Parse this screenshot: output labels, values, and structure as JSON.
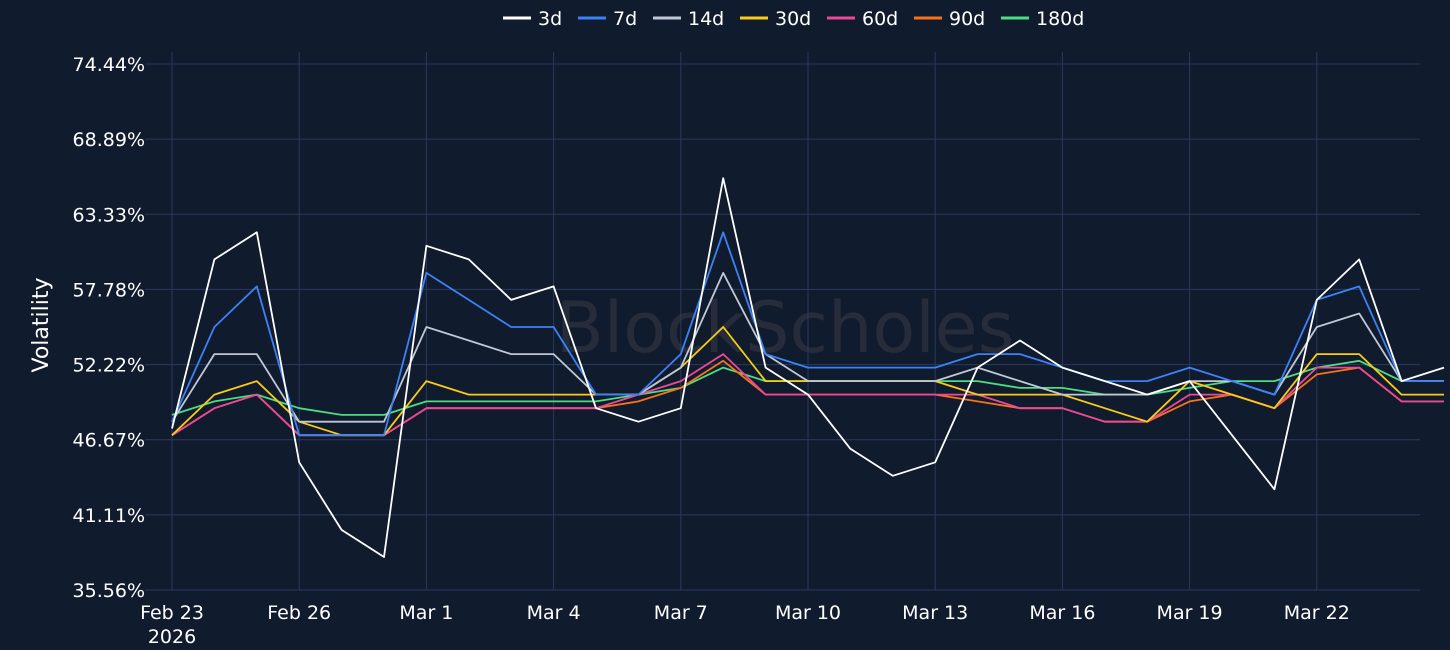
{
  "chart_data": {
    "type": "line",
    "title": "",
    "xlabel": "",
    "ylabel": "Volatility",
    "watermark": "BlockScholes",
    "legend_position": "top-center",
    "grid": true,
    "ylim": [
      35.56,
      74.44
    ],
    "xlim": [
      "2026-02-23",
      "2026-03-25"
    ],
    "y_ticks": [
      "35.56%",
      "41.11%",
      "46.67%",
      "52.22%",
      "57.78%",
      "63.33%",
      "68.89%",
      "74.44%"
    ],
    "y_tick_values": [
      35.56,
      41.11,
      46.67,
      52.22,
      57.78,
      63.33,
      68.89,
      74.44
    ],
    "x_ticks": [
      {
        "date": "2026-02-23",
        "label": "Feb 23",
        "sublabel": "2026"
      },
      {
        "date": "2026-02-26",
        "label": "Feb 26",
        "sublabel": ""
      },
      {
        "date": "2026-03-01",
        "label": "Mar 1",
        "sublabel": ""
      },
      {
        "date": "2026-03-04",
        "label": "Mar 4",
        "sublabel": ""
      },
      {
        "date": "2026-03-07",
        "label": "Mar 7",
        "sublabel": ""
      },
      {
        "date": "2026-03-10",
        "label": "Mar 10",
        "sublabel": ""
      },
      {
        "date": "2026-03-13",
        "label": "Mar 13",
        "sublabel": ""
      },
      {
        "date": "2026-03-16",
        "label": "Mar 16",
        "sublabel": ""
      },
      {
        "date": "2026-03-19",
        "label": "Mar 19",
        "sublabel": ""
      },
      {
        "date": "2026-03-22",
        "label": "Mar 22",
        "sublabel": ""
      }
    ],
    "x": [
      "2026-02-23",
      "2026-02-24",
      "2026-02-25",
      "2026-02-26",
      "2026-02-27",
      "2026-02-28",
      "2026-03-01",
      "2026-03-02",
      "2026-03-03",
      "2026-03-04",
      "2026-03-05",
      "2026-03-06",
      "2026-03-07",
      "2026-03-08",
      "2026-03-09",
      "2026-03-10",
      "2026-03-11",
      "2026-03-12",
      "2026-03-13",
      "2026-03-14",
      "2026-03-15",
      "2026-03-16",
      "2026-03-17",
      "2026-03-18",
      "2026-03-19",
      "2026-03-20",
      "2026-03-21",
      "2026-03-22",
      "2026-03-23",
      "2026-03-24",
      "2026-03-25"
    ],
    "series": [
      {
        "name": "3d",
        "color": "#ffffff",
        "values": [
          47.5,
          60,
          62,
          45,
          40,
          38,
          61,
          60,
          57,
          58,
          49,
          48,
          49,
          66,
          52,
          50,
          46,
          44,
          45,
          52,
          54,
          52,
          51,
          50,
          51,
          47,
          43,
          57,
          60,
          51,
          52
        ]
      },
      {
        "name": "7d",
        "color": "#3b82f6",
        "values": [
          48,
          55,
          58,
          47,
          47,
          47,
          59,
          57,
          55,
          55,
          50,
          50,
          53,
          62,
          53,
          52,
          52,
          52,
          52,
          53,
          53,
          52,
          51,
          51,
          52,
          51,
          50,
          57,
          58,
          51,
          51
        ]
      },
      {
        "name": "14d",
        "color": "#c0c8d4",
        "values": [
          48,
          53,
          53,
          48,
          48,
          48,
          55,
          54,
          53,
          53,
          50,
          50,
          52,
          59,
          53,
          51,
          51,
          51,
          51,
          52,
          51,
          50,
          50,
          50,
          51,
          51,
          50,
          55,
          56,
          51,
          51
        ]
      },
      {
        "name": "30d",
        "color": "#facc15",
        "values": [
          47,
          50,
          51,
          48,
          47,
          47,
          51,
          50,
          50,
          50,
          50,
          50,
          52,
          55,
          51,
          51,
          51,
          51,
          51,
          50,
          50,
          50,
          49,
          48,
          51,
          50,
          49,
          53,
          53,
          50,
          50
        ]
      },
      {
        "name": "60d",
        "color": "#ec4899",
        "values": [
          47,
          49,
          50,
          47,
          47,
          47,
          49,
          49,
          49,
          49,
          49,
          50,
          51,
          53,
          50,
          50,
          50,
          50,
          50,
          50,
          49,
          49,
          48,
          48,
          50,
          50,
          49,
          52,
          52,
          49.5,
          49.5
        ]
      },
      {
        "name": "90d",
        "color": "#f97316",
        "values": [
          47,
          49,
          50,
          47,
          47,
          47,
          49,
          49,
          49,
          49,
          49,
          49.5,
          50.5,
          52.5,
          50,
          50,
          50,
          50,
          50,
          49.5,
          49,
          49,
          48,
          48,
          49.5,
          50,
          49,
          51.5,
          52,
          49.5,
          49.5
        ]
      },
      {
        "name": "180d",
        "color": "#4ade80",
        "values": [
          48.5,
          49.5,
          50,
          49,
          48.5,
          48.5,
          49.5,
          49.5,
          49.5,
          49.5,
          49.5,
          50,
          50.5,
          52,
          51,
          51,
          51,
          51,
          51,
          51,
          50.5,
          50.5,
          50,
          50,
          50.5,
          51,
          51,
          52,
          52.5,
          51,
          51
        ]
      }
    ]
  }
}
